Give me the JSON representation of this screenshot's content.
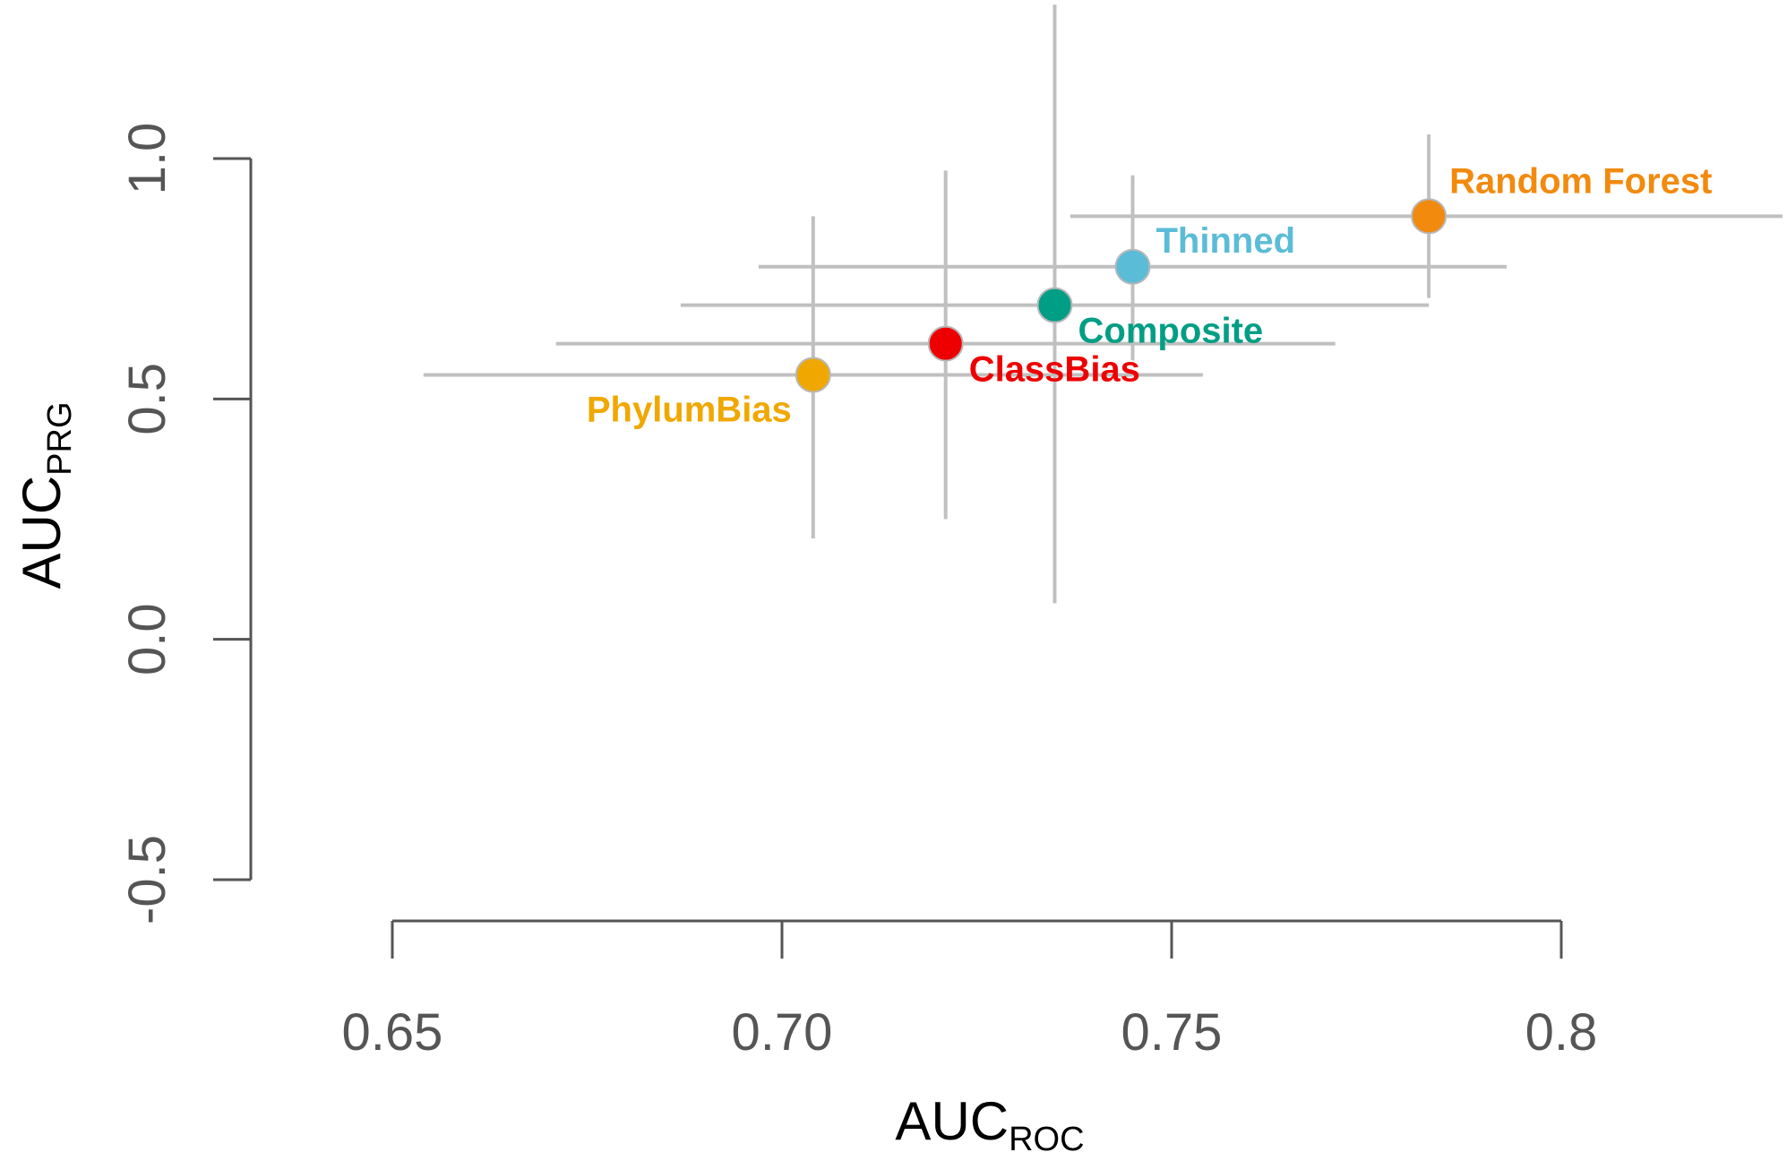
{
  "chart_data": {
    "type": "scatter",
    "title": "",
    "xlabel": {
      "main": "AUC",
      "sub": "ROC"
    },
    "ylabel": {
      "main": "AUC",
      "sub": "PRG"
    },
    "xlim": [
      0.65,
      0.8
    ],
    "ylim": [
      -0.5,
      1.0
    ],
    "x_ticks": [
      {
        "value": 0.65,
        "label": "0.65"
      },
      {
        "value": 0.7,
        "label": "0.70"
      },
      {
        "value": 0.75,
        "label": "0.75"
      },
      {
        "value": 0.8,
        "label": "0.8"
      }
    ],
    "y_ticks": [
      {
        "value": -0.5,
        "label": "-0.5"
      },
      {
        "value": 0.0,
        "label": "0.0"
      },
      {
        "value": 0.5,
        "label": "0.5"
      },
      {
        "value": 1.0,
        "label": "1.0"
      }
    ],
    "grid": false,
    "series": [
      {
        "name": "PhylumBias",
        "x": 0.704,
        "y": 0.55,
        "x_err": [
          0.654,
          0.754
        ],
        "y_err": [
          0.21,
          0.88
        ],
        "color": "#F0A800",
        "label_position": "bottom-left"
      },
      {
        "name": "ClassBias",
        "x": 0.721,
        "y": 0.615,
        "x_err": [
          0.671,
          0.771
        ],
        "y_err": [
          0.25,
          0.975
        ],
        "color": "#EE0000",
        "label_position": "bottom-right"
      },
      {
        "name": "Composite",
        "x": 0.735,
        "y": 0.695,
        "x_err": [
          0.687,
          0.783
        ],
        "y_err": [
          0.075,
          1.32
        ],
        "color": "#009E84",
        "label_position": "bottom-right"
      },
      {
        "name": "Thinned",
        "x": 0.745,
        "y": 0.775,
        "x_err": [
          0.697,
          0.793
        ],
        "y_err": [
          0.58,
          0.965
        ],
        "color": "#5BBCD8",
        "label_position": "top-right"
      },
      {
        "name": "Random Forest",
        "x": 0.783,
        "y": 0.88,
        "x_err": [
          0.737,
          0.83
        ],
        "y_err": [
          0.71,
          1.05
        ],
        "color": "#F28A0E",
        "label_position": "top-right"
      }
    ]
  }
}
